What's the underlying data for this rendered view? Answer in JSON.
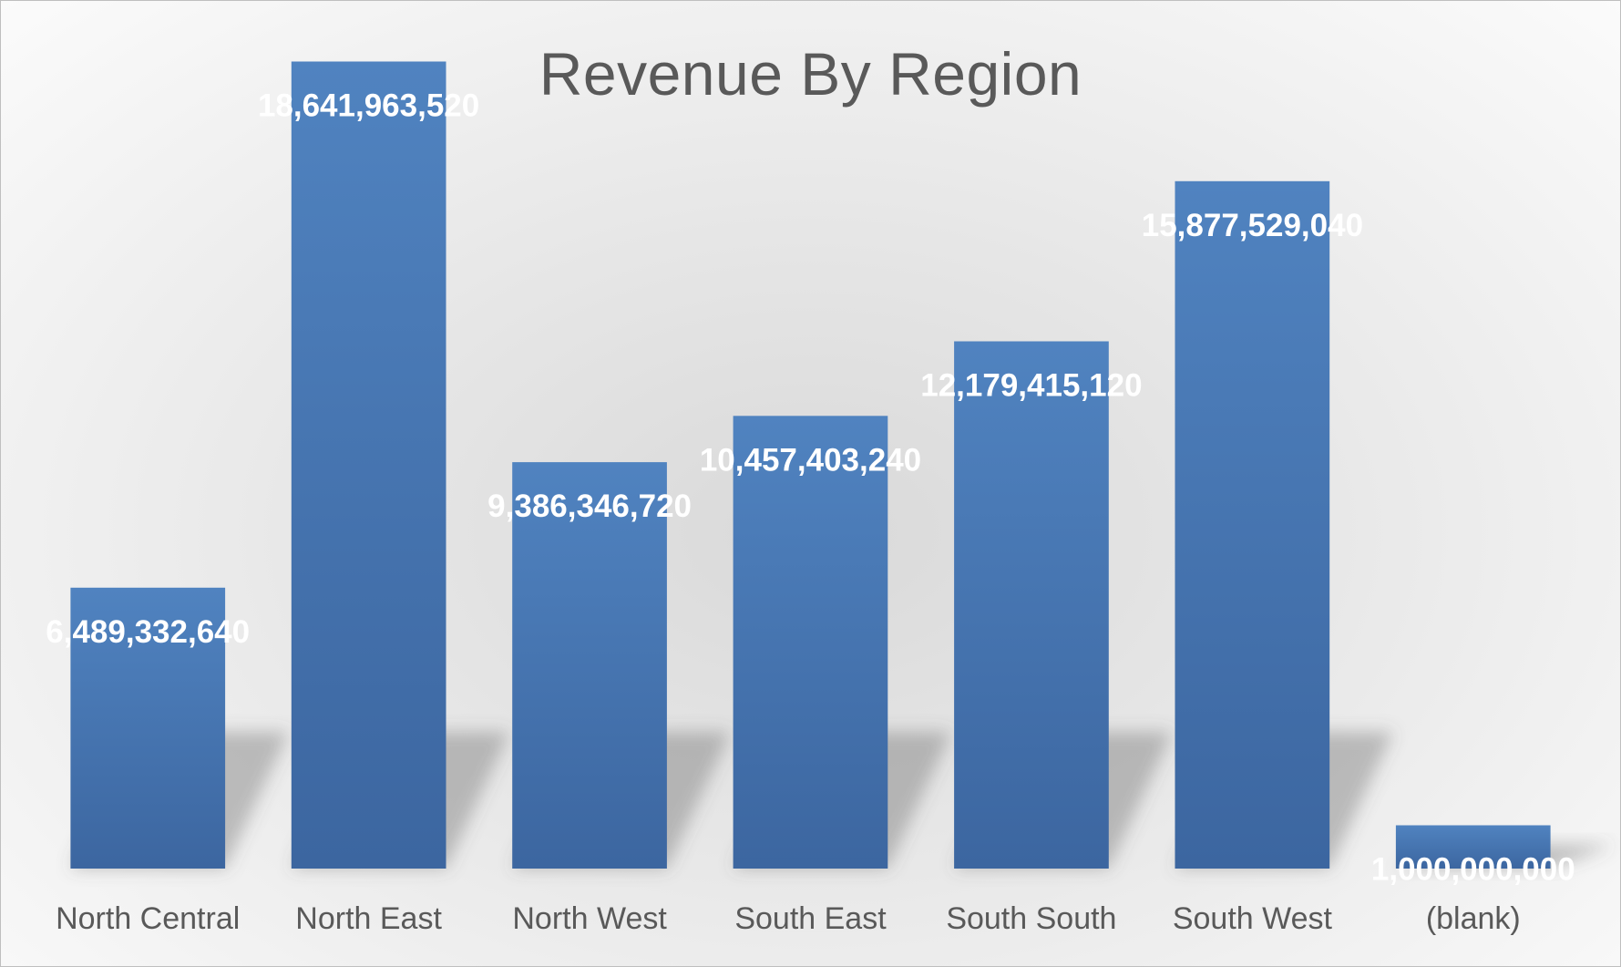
{
  "chart_data": {
    "type": "bar",
    "title": "Revenue By Region",
    "categories": [
      "North Central",
      "North East",
      "North West",
      "South East",
      "South South",
      "South West",
      "(blank)"
    ],
    "values": [
      6489332640,
      18641963520,
      9386346720,
      10457403240,
      12179415120,
      15877529040,
      1000000000
    ],
    "data_labels": [
      "6,489,332,640",
      "18,641,963,520",
      "9,386,346,720",
      "10,457,403,240",
      "12,179,415,120",
      "15,877,529,040",
      "1,000,000,000"
    ],
    "xlabel": "",
    "ylabel": "",
    "ylim": [
      0,
      20000000000
    ],
    "grid": false,
    "legend": "none",
    "bar_color": "#4a7ab8",
    "bar_color_dark": "#3e68a0",
    "label_color": "#ffffff",
    "axis_label_color": "#595959"
  }
}
